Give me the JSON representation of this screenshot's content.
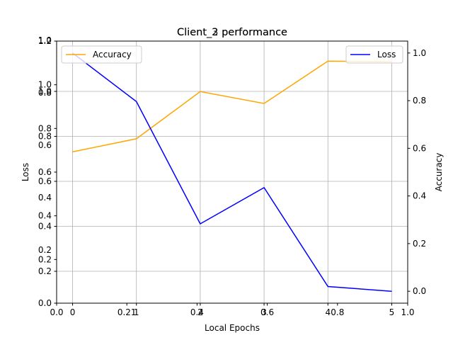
{
  "chart_data": {
    "type": "line",
    "title": "Client_2 performance",
    "ghost_title": "Client_3 performance",
    "xlabel": "Local Epochs",
    "ylabel_left": "Loss",
    "ylabel_right": "Accuracy",
    "grid": true,
    "x": [
      0,
      1,
      2,
      3,
      4,
      5
    ],
    "xlim": [
      -0.25,
      5.25
    ],
    "x_tick_labels": [
      "0",
      "1",
      "2",
      "3",
      "4",
      "5"
    ],
    "ghost_x_tick_labels": [
      "0.0",
      "0.21",
      "0.4",
      "0.6",
      "0.8",
      "1.0"
    ],
    "left_ticks_a": [
      "0.0",
      "0.2",
      "0.4",
      "0.6",
      "0.8",
      "1.0",
      "1.2"
    ],
    "left_ticks_b": [
      "0.2",
      "0.4",
      "0.6",
      "0.8",
      "1.0"
    ],
    "ghost_left_ticks": [
      "0.2",
      "0.4",
      "0.6",
      "0.8",
      "1.0"
    ],
    "right_ticks": [
      "0.0",
      "0.2",
      "0.4",
      "0.6",
      "0.8",
      "1.0"
    ],
    "ylim_right": [
      -0.05,
      1.05
    ],
    "series": [
      {
        "name": "Accuracy",
        "axis": "right",
        "color": "#ffa500",
        "values": [
          0.585,
          0.64,
          0.838,
          0.788,
          0.966,
          0.963
        ]
      },
      {
        "name": "Loss",
        "axis": "right",
        "color": "#0000ff",
        "values": [
          1.0,
          0.796,
          0.283,
          0.435,
          0.02,
          0.0
        ]
      }
    ],
    "legends": {
      "left": {
        "placement": "top-left",
        "entries": [
          "Accuracy"
        ]
      },
      "right": {
        "placement": "top-right",
        "entries": [
          "Loss"
        ]
      }
    }
  }
}
